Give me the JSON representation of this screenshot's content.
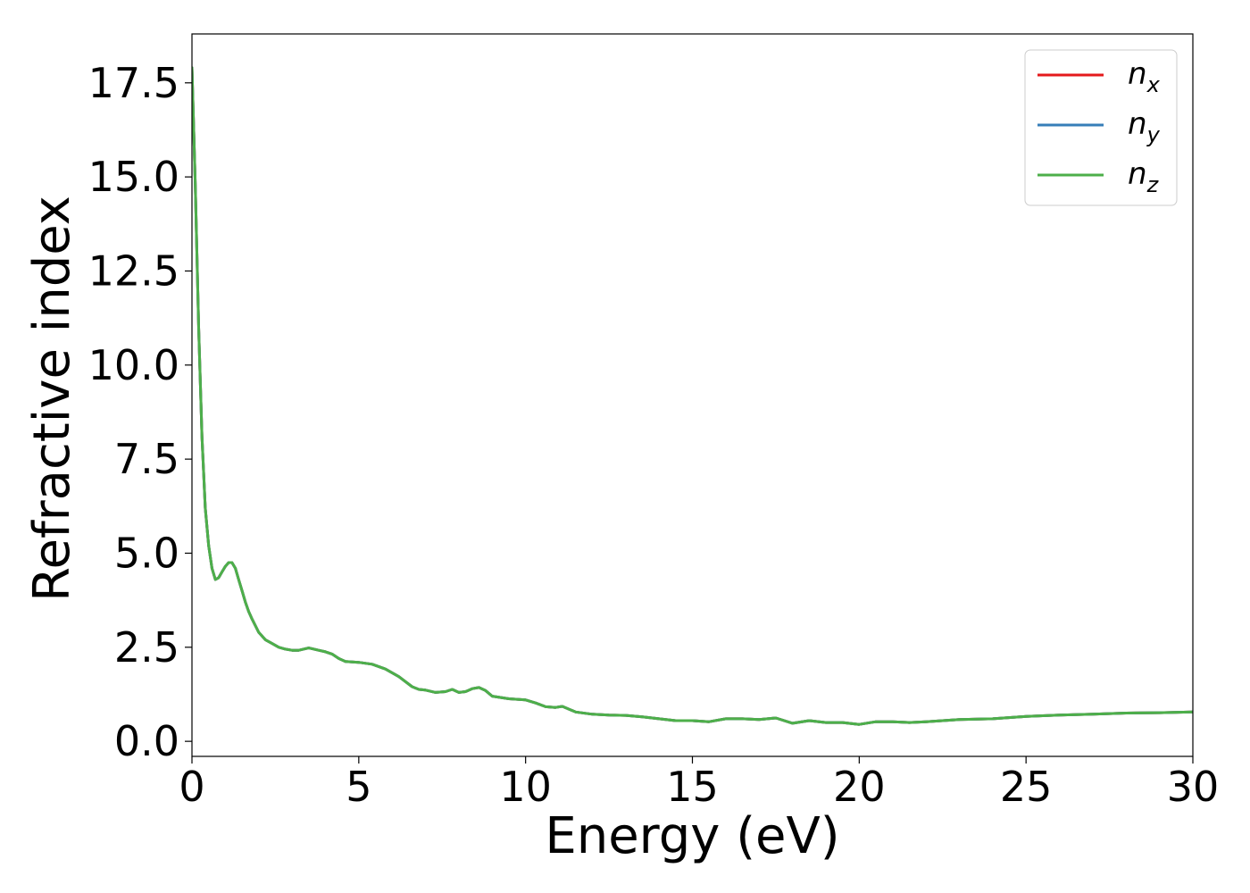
{
  "chart_data": {
    "type": "line",
    "xlabel": "Energy (eV)",
    "ylabel": "Refractive index",
    "xlim": [
      0,
      30
    ],
    "ylim": [
      -0.4,
      18.8
    ],
    "xticks": [
      0,
      5,
      10,
      15,
      20,
      25,
      30
    ],
    "xtick_labels": [
      "0",
      "5",
      "10",
      "15",
      "20",
      "25",
      "30"
    ],
    "yticks": [
      0.0,
      2.5,
      5.0,
      7.5,
      10.0,
      12.5,
      15.0,
      17.5
    ],
    "ytick_labels": [
      "0.0",
      "2.5",
      "5.0",
      "7.5",
      "10.0",
      "12.5",
      "15.0",
      "17.5"
    ],
    "grid": false,
    "legend_position": "top-right",
    "x": [
      0.0,
      0.1,
      0.2,
      0.3,
      0.4,
      0.5,
      0.6,
      0.7,
      0.8,
      0.9,
      1.0,
      1.1,
      1.2,
      1.3,
      1.4,
      1.5,
      1.6,
      1.7,
      1.8,
      2.0,
      2.2,
      2.4,
      2.6,
      2.8,
      3.0,
      3.2,
      3.5,
      3.8,
      4.0,
      4.2,
      4.4,
      4.6,
      5.0,
      5.4,
      5.8,
      6.2,
      6.6,
      6.8,
      7.0,
      7.3,
      7.6,
      7.8,
      8.0,
      8.2,
      8.4,
      8.6,
      8.8,
      9.0,
      9.5,
      10.0,
      10.3,
      10.6,
      10.9,
      11.1,
      11.5,
      12.0,
      12.5,
      13.0,
      13.5,
      14.0,
      14.5,
      15.0,
      15.5,
      16.0,
      16.5,
      17.0,
      17.5,
      18.0,
      18.5,
      19.0,
      19.5,
      20.0,
      20.5,
      21.0,
      21.5,
      22.0,
      23.0,
      24.0,
      25.0,
      26.0,
      27.0,
      28.0,
      29.0,
      30.0
    ],
    "series": [
      {
        "name": "n_x",
        "label_base": "n",
        "label_sub": "x",
        "color": "#e41a1c",
        "values": [
          17.9,
          14.8,
          11.0,
          8.1,
          6.2,
          5.2,
          4.6,
          4.3,
          4.35,
          4.5,
          4.65,
          4.75,
          4.75,
          4.6,
          4.3,
          4.0,
          3.7,
          3.45,
          3.25,
          2.9,
          2.7,
          2.6,
          2.5,
          2.45,
          2.42,
          2.42,
          2.48,
          2.42,
          2.38,
          2.32,
          2.2,
          2.12,
          2.1,
          2.05,
          1.92,
          1.72,
          1.45,
          1.38,
          1.36,
          1.3,
          1.32,
          1.38,
          1.3,
          1.32,
          1.4,
          1.43,
          1.35,
          1.2,
          1.13,
          1.1,
          1.02,
          0.92,
          0.9,
          0.93,
          0.78,
          0.72,
          0.7,
          0.69,
          0.65,
          0.6,
          0.55,
          0.55,
          0.52,
          0.6,
          0.6,
          0.58,
          0.62,
          0.48,
          0.55,
          0.5,
          0.5,
          0.45,
          0.52,
          0.52,
          0.5,
          0.52,
          0.58,
          0.6,
          0.66,
          0.7,
          0.72,
          0.75,
          0.76,
          0.78
        ]
      },
      {
        "name": "n_y",
        "label_base": "n",
        "label_sub": "y",
        "color": "#377eb8",
        "values": [
          17.9,
          14.8,
          11.0,
          8.1,
          6.2,
          5.2,
          4.6,
          4.3,
          4.35,
          4.5,
          4.65,
          4.75,
          4.75,
          4.6,
          4.3,
          4.0,
          3.7,
          3.45,
          3.25,
          2.9,
          2.7,
          2.6,
          2.5,
          2.45,
          2.42,
          2.42,
          2.48,
          2.42,
          2.38,
          2.32,
          2.2,
          2.12,
          2.1,
          2.05,
          1.92,
          1.72,
          1.45,
          1.38,
          1.36,
          1.3,
          1.32,
          1.38,
          1.3,
          1.32,
          1.4,
          1.43,
          1.35,
          1.2,
          1.13,
          1.1,
          1.02,
          0.92,
          0.9,
          0.93,
          0.78,
          0.72,
          0.7,
          0.69,
          0.65,
          0.6,
          0.55,
          0.55,
          0.52,
          0.6,
          0.6,
          0.58,
          0.62,
          0.48,
          0.55,
          0.5,
          0.5,
          0.45,
          0.52,
          0.52,
          0.5,
          0.52,
          0.58,
          0.6,
          0.66,
          0.7,
          0.72,
          0.75,
          0.76,
          0.78
        ]
      },
      {
        "name": "n_z",
        "label_base": "n",
        "label_sub": "z",
        "color": "#4daf4a",
        "values": [
          17.9,
          14.8,
          11.0,
          8.1,
          6.2,
          5.2,
          4.6,
          4.3,
          4.35,
          4.5,
          4.65,
          4.75,
          4.75,
          4.6,
          4.3,
          4.0,
          3.7,
          3.45,
          3.25,
          2.9,
          2.7,
          2.6,
          2.5,
          2.45,
          2.42,
          2.42,
          2.48,
          2.42,
          2.38,
          2.32,
          2.2,
          2.12,
          2.1,
          2.05,
          1.92,
          1.72,
          1.45,
          1.38,
          1.36,
          1.3,
          1.32,
          1.38,
          1.3,
          1.32,
          1.4,
          1.43,
          1.35,
          1.2,
          1.13,
          1.1,
          1.02,
          0.92,
          0.9,
          0.93,
          0.78,
          0.72,
          0.7,
          0.69,
          0.65,
          0.6,
          0.55,
          0.55,
          0.52,
          0.6,
          0.6,
          0.58,
          0.62,
          0.48,
          0.55,
          0.5,
          0.5,
          0.45,
          0.52,
          0.52,
          0.5,
          0.52,
          0.58,
          0.6,
          0.66,
          0.7,
          0.72,
          0.75,
          0.76,
          0.78
        ]
      }
    ]
  }
}
